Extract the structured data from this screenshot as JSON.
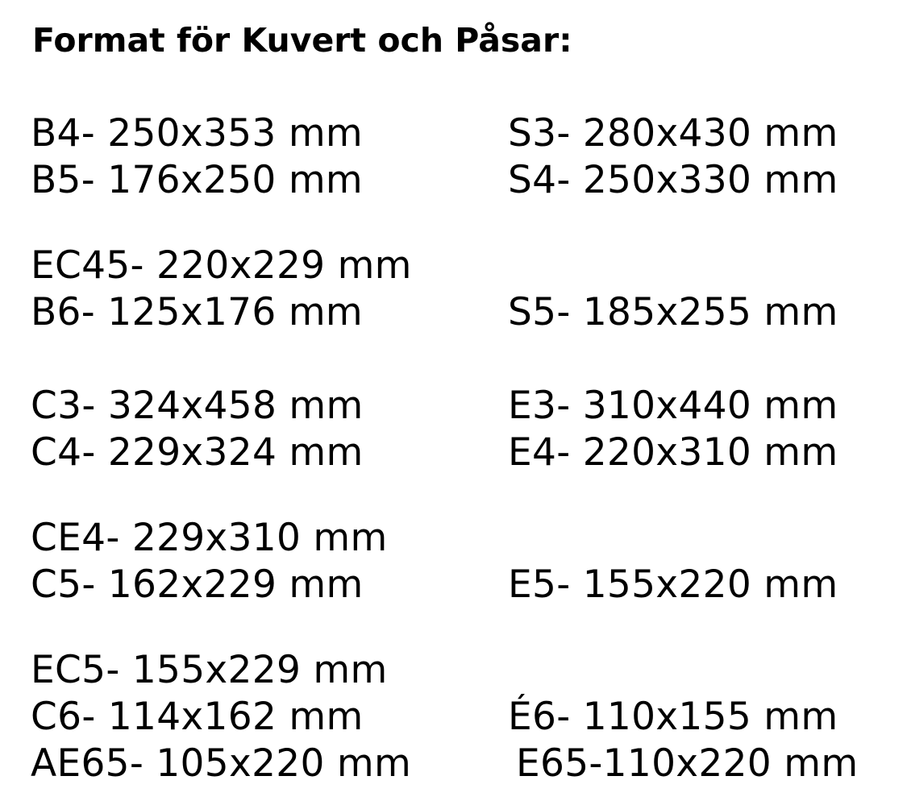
{
  "document": {
    "title": "Format för Kuvert och Påsar:"
  },
  "left_column": [
    "B4- 250x353 mm",
    "B5- 176x250 mm",
    "EC45- 220x229 mm",
    "B6- 125x176 mm",
    "C3- 324x458 mm",
    "C4- 229x324 mm",
    "CE4- 229x310 mm",
    "C5- 162x229 mm",
    "EC5- 155x229 mm",
    "C6- 114x162 mm",
    "AE65- 105x220 mm"
  ],
  "right_column": [
    "S3- 280x430 mm",
    "S4- 250x330 mm",
    "S5- 185x255 mm",
    "E3- 310x440 mm",
    "E4- 220x310 mm",
    "E5- 155x220 mm",
    "É6- 110x155 mm",
    "E65-110x220 mm"
  ]
}
